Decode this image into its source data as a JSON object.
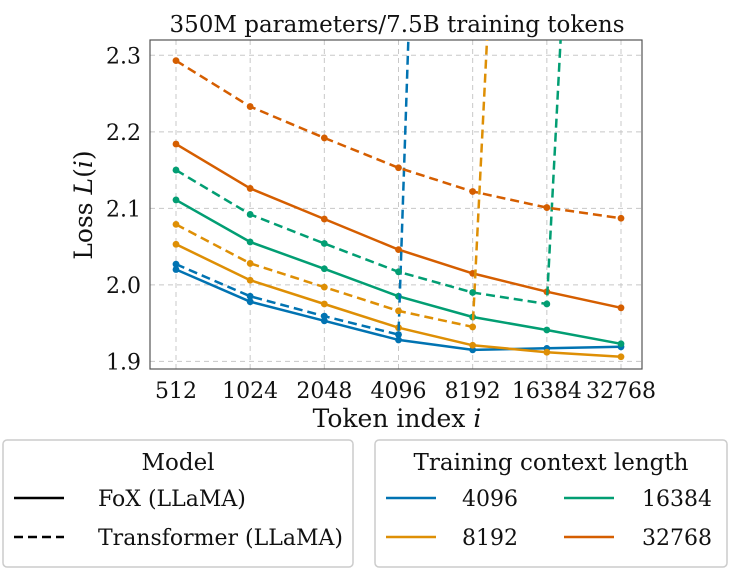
{
  "chart_data": {
    "type": "line",
    "title": "350M parameters/7.5B training tokens",
    "xlabel": "Token index",
    "xlabel_var": "i",
    "ylabel": "Loss",
    "ylabel_fn": "L",
    "ylabel_var": "i",
    "x_scale": "log2",
    "categories": [
      "512",
      "1024",
      "2048",
      "4096",
      "8192",
      "16384",
      "32768"
    ],
    "x": [
      512,
      1024,
      2048,
      4096,
      8192,
      16384,
      32768
    ],
    "ylim": [
      1.89,
      2.32
    ],
    "yticks": [
      1.9,
      2.0,
      2.1,
      2.2,
      2.3
    ],
    "ytick_labels": [
      "1.9",
      "2.0",
      "2.1",
      "2.2",
      "2.3"
    ],
    "grid": true,
    "colors": {
      "4096": "#0173b2",
      "8192": "#de8f05",
      "16384": "#029e73",
      "32768": "#d55e00"
    },
    "series": [
      {
        "name": "FoX (LLaMA), context 4096",
        "model": "FoX (LLaMA)",
        "context": "4096",
        "style": "solid",
        "x": [
          512,
          1024,
          2048,
          4096,
          8192,
          16384,
          32768
        ],
        "values": [
          2.02,
          1.978,
          1.953,
          1.928,
          1.915,
          1.917,
          1.919
        ]
      },
      {
        "name": "FoX (LLaMA), context 8192",
        "model": "FoX (LLaMA)",
        "context": "8192",
        "style": "solid",
        "x": [
          512,
          1024,
          2048,
          4096,
          8192,
          16384,
          32768
        ],
        "values": [
          2.053,
          2.006,
          1.975,
          1.944,
          1.921,
          1.912,
          1.906
        ]
      },
      {
        "name": "FoX (LLaMA), context 16384",
        "model": "FoX (LLaMA)",
        "context": "16384",
        "style": "solid",
        "x": [
          512,
          1024,
          2048,
          4096,
          8192,
          16384,
          32768
        ],
        "values": [
          2.111,
          2.056,
          2.021,
          1.985,
          1.958,
          1.941,
          1.923
        ]
      },
      {
        "name": "FoX (LLaMA), context 32768",
        "model": "FoX (LLaMA)",
        "context": "32768",
        "style": "solid",
        "x": [
          512,
          1024,
          2048,
          4096,
          8192,
          16384,
          32768
        ],
        "values": [
          2.184,
          2.126,
          2.086,
          2.046,
          2.015,
          1.991,
          1.97
        ]
      },
      {
        "name": "Transformer (LLaMA), context 4096",
        "model": "Transformer (LLaMA)",
        "context": "4096",
        "style": "dashed",
        "x": [
          512,
          1024,
          2048,
          4096,
          4500
        ],
        "values": [
          2.027,
          1.985,
          1.959,
          1.935,
          2.33
        ]
      },
      {
        "name": "Transformer (LLaMA), context 8192",
        "model": "Transformer (LLaMA)",
        "context": "8192",
        "style": "dashed",
        "x": [
          512,
          1024,
          2048,
          4096,
          8192,
          9400
        ],
        "values": [
          2.079,
          2.028,
          1.997,
          1.966,
          1.945,
          2.33
        ]
      },
      {
        "name": "Transformer (LLaMA), context 16384",
        "model": "Transformer (LLaMA)",
        "context": "16384",
        "style": "dashed",
        "x": [
          512,
          1024,
          2048,
          4096,
          8192,
          16384,
          18700
        ],
        "values": [
          2.15,
          2.092,
          2.054,
          2.017,
          1.99,
          1.975,
          2.33
        ]
      },
      {
        "name": "Transformer (LLaMA), context 32768",
        "model": "Transformer (LLaMA)",
        "context": "32768",
        "style": "dashed",
        "x": [
          512,
          1024,
          2048,
          4096,
          8192,
          16384,
          32768
        ],
        "values": [
          2.293,
          2.233,
          2.192,
          2.153,
          2.122,
          2.101,
          2.087
        ]
      }
    ],
    "legend_model": {
      "title": "Model",
      "entries": [
        {
          "label": "FoX (LLaMA)",
          "style": "solid"
        },
        {
          "label": "Transformer (LLaMA)",
          "style": "dashed"
        }
      ]
    },
    "legend_context": {
      "title": "Training context length",
      "entries": [
        {
          "label": "4096",
          "color": "#0173b2"
        },
        {
          "label": "16384",
          "color": "#029e73"
        },
        {
          "label": "8192",
          "color": "#de8f05"
        },
        {
          "label": "32768",
          "color": "#d55e00"
        }
      ]
    }
  }
}
